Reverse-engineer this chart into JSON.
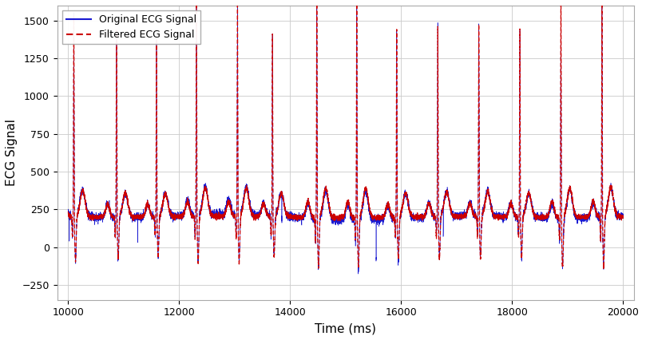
{
  "title": "",
  "xlabel": "Time (ms)",
  "ylabel": "ECG Signal",
  "xlim": [
    9800,
    20200
  ],
  "ylim": [
    -350,
    1600
  ],
  "xticks": [
    10000,
    12000,
    14000,
    16000,
    18000,
    20000
  ],
  "yticks": [
    -250,
    0,
    250,
    500,
    750,
    1000,
    1250,
    1500
  ],
  "original_color": "#0000cc",
  "filtered_color": "#cc0000",
  "background_color": "#ffffff",
  "grid_color": "#cccccc",
  "legend_original": "Original ECG Signal",
  "legend_filtered": "Filtered ECG Signal",
  "figsize": [
    8.09,
    4.26
  ],
  "dpi": 100,
  "t_start": 10000,
  "t_end": 20000,
  "fs": 1000,
  "noise_amplitude": 55,
  "baseline": 200
}
